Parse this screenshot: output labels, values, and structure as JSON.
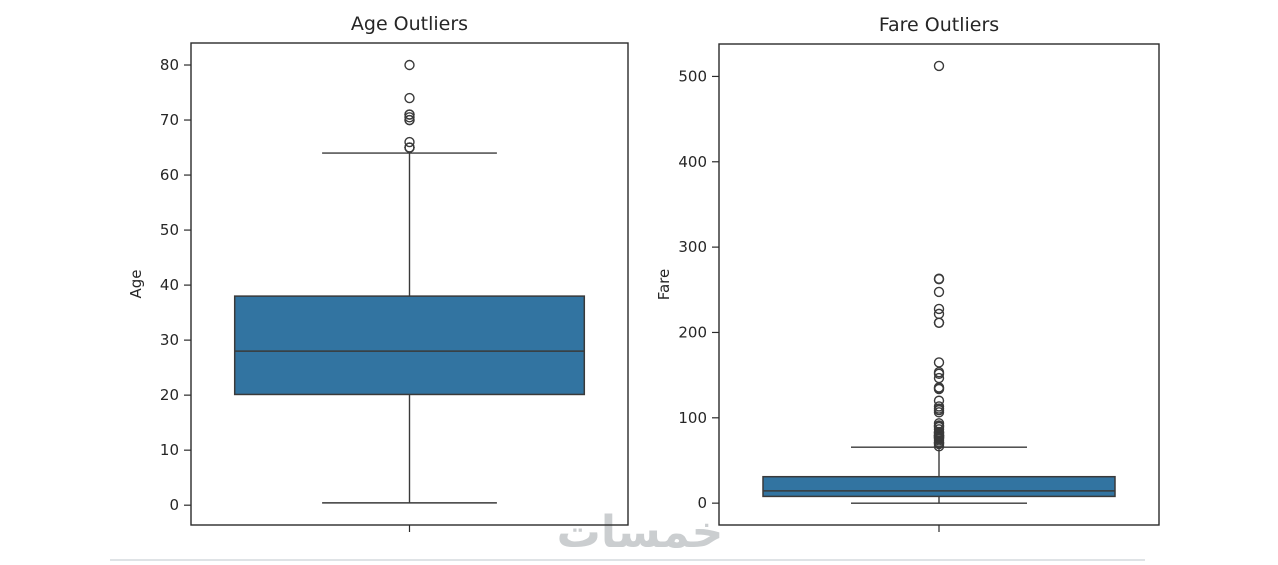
{
  "figure": {
    "background": "#ffffff",
    "spine_color": "#2b2b2b",
    "tick_color": "#2b2b2b",
    "text_color": "#262626"
  },
  "watermark": {
    "text": "خمسات",
    "color": "#cbced0"
  },
  "divider": {
    "color": "#dfe3e6"
  },
  "chart_data": [
    {
      "type": "box",
      "title": "Age Outliers",
      "ylabel": "Age",
      "xlabel": "",
      "grid": false,
      "legend": null,
      "yticks": [
        0,
        10,
        20,
        30,
        40,
        50,
        60,
        70,
        80
      ],
      "ylim": [
        -3.6,
        84.0
      ],
      "box": {
        "q1": 20.125,
        "median": 28.0,
        "q3": 38.0,
        "whisker_low": 0.42,
        "whisker_high": 64.0
      },
      "outliers": [
        65,
        65,
        65,
        66,
        70,
        70,
        70.5,
        71,
        71,
        74,
        80
      ],
      "box_fill": "#3274a1",
      "line_color": "#3a3a3a"
    },
    {
      "type": "box",
      "title": "Fare Outliers",
      "ylabel": "Fare",
      "xlabel": "",
      "grid": false,
      "legend": null,
      "yticks": [
        0,
        100,
        200,
        300,
        400,
        500
      ],
      "ylim": [
        -25.6,
        538.0
      ],
      "box": {
        "q1": 7.91,
        "median": 14.45,
        "q3": 31.0,
        "whisker_low": 0.0,
        "whisker_high": 65.6
      },
      "outliers": [
        66.6,
        69.3,
        69.55,
        71.0,
        71.28,
        73.5,
        75.25,
        76.29,
        76.73,
        77.29,
        77.96,
        78.27,
        78.85,
        79.2,
        79.65,
        80.0,
        81.86,
        82.17,
        83.16,
        83.47,
        86.5,
        89.1,
        90.0,
        91.08,
        93.5,
        106.42,
        108.9,
        110.88,
        113.28,
        120.0,
        133.65,
        134.5,
        135.63,
        146.52,
        151.55,
        153.46,
        164.87,
        211.34,
        211.5,
        221.78,
        227.53,
        247.52,
        262.38,
        263.0,
        512.33
      ],
      "box_fill": "#3274a1",
      "line_color": "#3a3a3a"
    }
  ]
}
